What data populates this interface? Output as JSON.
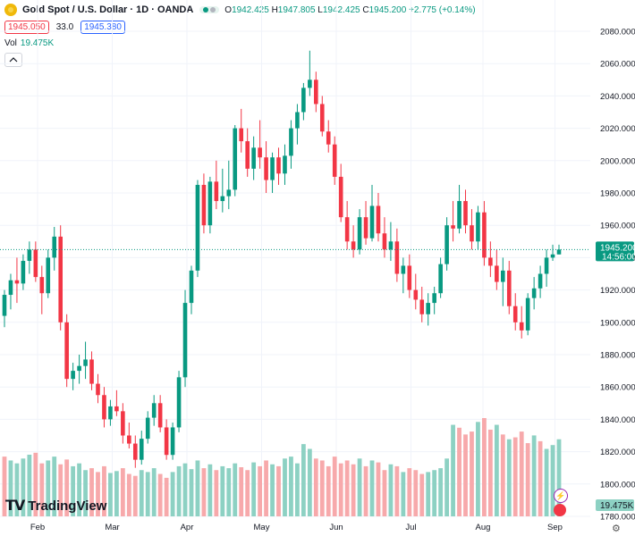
{
  "header": {
    "title": "Gold Spot / U.S. Dollar · 1D · OANDA",
    "ohlc": {
      "o_label": "O",
      "o": "1942.425",
      "h_label": "H",
      "h": "1947.805",
      "l_label": "L",
      "l": "1942.425",
      "c_label": "C",
      "c": "1945.200",
      "change": "+2.775 (+0.14%)"
    },
    "sell_price": "1945.050",
    "spread": "33.0",
    "buy_price": "1945.380",
    "volume_label": "Vol",
    "volume_value": "19.475K",
    "collapse_icon": "chevron-up-icon"
  },
  "brand": {
    "name": "TradingView"
  },
  "price_tag": {
    "price": "1945.200",
    "countdown": "14:56:00"
  },
  "volume_tag": "19.475K",
  "colors": {
    "up": "#089981",
    "down": "#f23645",
    "up_vol": "#8dd1c3",
    "down_vol": "#f7a9ab",
    "grid": "#f0f3fa"
  },
  "chart_data": {
    "type": "candlestick",
    "y_axis_labels": [
      "2080.000",
      "2060.000",
      "2040.000",
      "2020.000",
      "2000.000",
      "1980.000",
      "1960.000",
      "1940.000",
      "1920.000",
      "1900.000",
      "1880.000",
      "1860.000",
      "1840.000",
      "1820.000",
      "1800.000",
      "1780.000"
    ],
    "ylim": [
      1780,
      2080
    ],
    "x_axis_labels": [
      "Feb",
      "Mar",
      "Apr",
      "May",
      "Jun",
      "Jul",
      "Aug",
      "Sep"
    ],
    "grid": true,
    "candles": [
      [
        1904,
        1920,
        1897,
        1917
      ],
      [
        1917,
        1930,
        1908,
        1926
      ],
      [
        1926,
        1940,
        1912,
        1924
      ],
      [
        1924,
        1942,
        1920,
        1938
      ],
      [
        1938,
        1950,
        1930,
        1945
      ],
      [
        1945,
        1950,
        1925,
        1928
      ],
      [
        1928,
        1935,
        1905,
        1918
      ],
      [
        1918,
        1945,
        1915,
        1940
      ],
      [
        1940,
        1959,
        1932,
        1953
      ],
      [
        1953,
        1960,
        1895,
        1900
      ],
      [
        1900,
        1905,
        1860,
        1865
      ],
      [
        1865,
        1875,
        1858,
        1870
      ],
      [
        1870,
        1880,
        1862,
        1873
      ],
      [
        1873,
        1888,
        1865,
        1877
      ],
      [
        1877,
        1882,
        1858,
        1862
      ],
      [
        1862,
        1868,
        1850,
        1855
      ],
      [
        1855,
        1860,
        1835,
        1840
      ],
      [
        1840,
        1852,
        1836,
        1848
      ],
      [
        1848,
        1858,
        1842,
        1845
      ],
      [
        1845,
        1850,
        1825,
        1830
      ],
      [
        1830,
        1838,
        1822,
        1825
      ],
      [
        1825,
        1830,
        1810,
        1815
      ],
      [
        1815,
        1833,
        1812,
        1828
      ],
      [
        1828,
        1845,
        1825,
        1841
      ],
      [
        1841,
        1855,
        1836,
        1850
      ],
      [
        1850,
        1855,
        1832,
        1835
      ],
      [
        1835,
        1840,
        1815,
        1818
      ],
      [
        1818,
        1838,
        1815,
        1835
      ],
      [
        1835,
        1870,
        1832,
        1866
      ],
      [
        1866,
        1920,
        1860,
        1912
      ],
      [
        1912,
        1935,
        1905,
        1932
      ],
      [
        1932,
        1988,
        1928,
        1985
      ],
      [
        1985,
        1992,
        1955,
        1960
      ],
      [
        1960,
        1990,
        1955,
        1987
      ],
      [
        1987,
        2000,
        1970,
        1975
      ],
      [
        1975,
        1995,
        1968,
        1978
      ],
      [
        1978,
        2000,
        1970,
        1982
      ],
      [
        1982,
        2022,
        1978,
        2020
      ],
      [
        2020,
        2032,
        2005,
        2012
      ],
      [
        2012,
        2020,
        1990,
        1995
      ],
      [
        1995,
        2015,
        1988,
        2008
      ],
      [
        2008,
        2025,
        1995,
        2002
      ],
      [
        2002,
        2012,
        1980,
        1988
      ],
      [
        1988,
        2005,
        1980,
        2002
      ],
      [
        2002,
        2008,
        1985,
        1992
      ],
      [
        1992,
        2010,
        1985,
        2003
      ],
      [
        2003,
        2025,
        1995,
        2020
      ],
      [
        2020,
        2035,
        2010,
        2030
      ],
      [
        2030,
        2048,
        2025,
        2045
      ],
      [
        2045,
        2068,
        2040,
        2050
      ],
      [
        2050,
        2055,
        2030,
        2035
      ],
      [
        2035,
        2040,
        2015,
        2018
      ],
      [
        2018,
        2025,
        2005,
        2010
      ],
      [
        2010,
        2015,
        1985,
        1990
      ],
      [
        1990,
        1998,
        1962,
        1965
      ],
      [
        1965,
        1975,
        1945,
        1950
      ],
      [
        1950,
        1960,
        1940,
        1945
      ],
      [
        1945,
        1970,
        1942,
        1965
      ],
      [
        1965,
        1975,
        1948,
        1952
      ],
      [
        1952,
        1985,
        1950,
        1972
      ],
      [
        1972,
        1980,
        1950,
        1955
      ],
      [
        1955,
        1965,
        1940,
        1945
      ],
      [
        1945,
        1962,
        1938,
        1950
      ],
      [
        1950,
        1958,
        1925,
        1930
      ],
      [
        1930,
        1940,
        1918,
        1935
      ],
      [
        1935,
        1942,
        1915,
        1920
      ],
      [
        1920,
        1930,
        1908,
        1914
      ],
      [
        1914,
        1922,
        1900,
        1905
      ],
      [
        1905,
        1918,
        1898,
        1912
      ],
      [
        1912,
        1922,
        1905,
        1918
      ],
      [
        1918,
        1940,
        1915,
        1936
      ],
      [
        1936,
        1965,
        1932,
        1960
      ],
      [
        1960,
        1975,
        1950,
        1958
      ],
      [
        1958,
        1985,
        1955,
        1975
      ],
      [
        1975,
        1982,
        1955,
        1960
      ],
      [
        1960,
        1970,
        1945,
        1950
      ],
      [
        1950,
        1972,
        1945,
        1968
      ],
      [
        1968,
        1975,
        1935,
        1940
      ],
      [
        1940,
        1950,
        1928,
        1935
      ],
      [
        1935,
        1945,
        1920,
        1925
      ],
      [
        1925,
        1940,
        1910,
        1932
      ],
      [
        1932,
        1938,
        1905,
        1910
      ],
      [
        1910,
        1918,
        1895,
        1900
      ],
      [
        1900,
        1910,
        1890,
        1895
      ],
      [
        1895,
        1918,
        1892,
        1915
      ],
      [
        1915,
        1928,
        1908,
        1921
      ],
      [
        1921,
        1935,
        1915,
        1930
      ],
      [
        1930,
        1945,
        1922,
        1940
      ],
      [
        1940,
        1948,
        1938,
        1942
      ],
      [
        1942,
        1948,
        1942,
        1945
      ]
    ],
    "volume": [
      [
        62,
        0
      ],
      [
        58,
        1
      ],
      [
        55,
        1
      ],
      [
        60,
        1
      ],
      [
        64,
        1
      ],
      [
        66,
        0
      ],
      [
        55,
        0
      ],
      [
        58,
        1
      ],
      [
        62,
        1
      ],
      [
        54,
        0
      ],
      [
        59,
        0
      ],
      [
        52,
        1
      ],
      [
        55,
        1
      ],
      [
        48,
        1
      ],
      [
        50,
        0
      ],
      [
        46,
        0
      ],
      [
        52,
        0
      ],
      [
        45,
        1
      ],
      [
        47,
        1
      ],
      [
        50,
        0
      ],
      [
        44,
        0
      ],
      [
        42,
        0
      ],
      [
        48,
        1
      ],
      [
        46,
        1
      ],
      [
        50,
        1
      ],
      [
        44,
        0
      ],
      [
        40,
        0
      ],
      [
        46,
        1
      ],
      [
        52,
        1
      ],
      [
        55,
        1
      ],
      [
        49,
        1
      ],
      [
        58,
        1
      ],
      [
        50,
        0
      ],
      [
        54,
        1
      ],
      [
        48,
        0
      ],
      [
        52,
        1
      ],
      [
        50,
        1
      ],
      [
        55,
        1
      ],
      [
        51,
        0
      ],
      [
        48,
        0
      ],
      [
        56,
        1
      ],
      [
        52,
        0
      ],
      [
        58,
        0
      ],
      [
        54,
        1
      ],
      [
        52,
        0
      ],
      [
        60,
        1
      ],
      [
        62,
        1
      ],
      [
        55,
        1
      ],
      [
        75,
        1
      ],
      [
        70,
        1
      ],
      [
        60,
        0
      ],
      [
        58,
        0
      ],
      [
        52,
        0
      ],
      [
        62,
        0
      ],
      [
        55,
        0
      ],
      [
        58,
        0
      ],
      [
        54,
        0
      ],
      [
        60,
        1
      ],
      [
        52,
        0
      ],
      [
        58,
        1
      ],
      [
        56,
        0
      ],
      [
        48,
        0
      ],
      [
        54,
        1
      ],
      [
        52,
        0
      ],
      [
        46,
        1
      ],
      [
        50,
        0
      ],
      [
        48,
        0
      ],
      [
        44,
        0
      ],
      [
        46,
        1
      ],
      [
        48,
        1
      ],
      [
        50,
        1
      ],
      [
        60,
        1
      ],
      [
        95,
        1
      ],
      [
        92,
        0
      ],
      [
        85,
        0
      ],
      [
        88,
        0
      ],
      [
        98,
        1
      ],
      [
        102,
        0
      ],
      [
        90,
        0
      ],
      [
        95,
        1
      ],
      [
        85,
        0
      ],
      [
        80,
        1
      ],
      [
        82,
        0
      ],
      [
        88,
        0
      ],
      [
        76,
        0
      ],
      [
        84,
        1
      ],
      [
        78,
        0
      ],
      [
        70,
        1
      ],
      [
        74,
        1
      ],
      [
        80,
        1
      ]
    ]
  }
}
